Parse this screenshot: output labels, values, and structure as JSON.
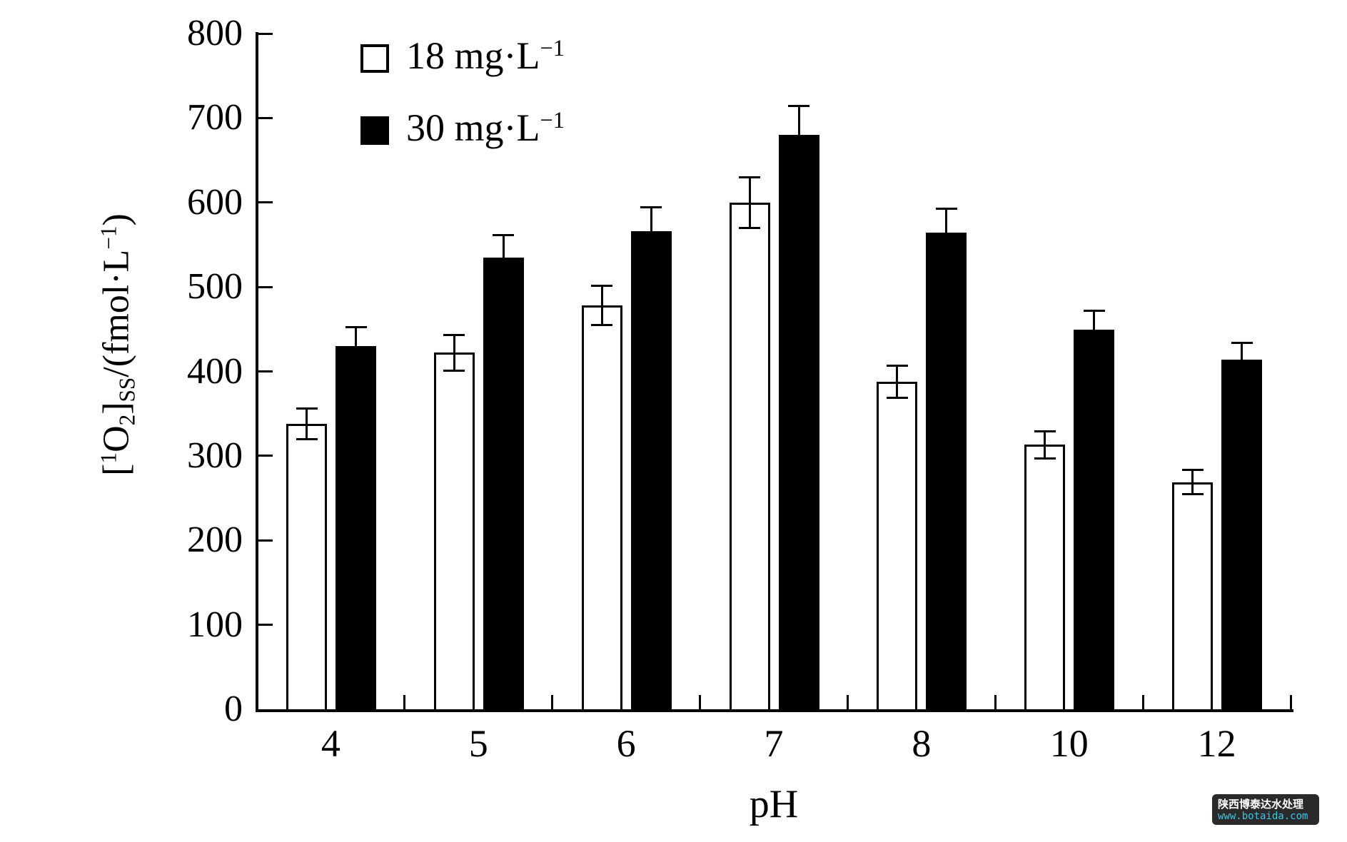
{
  "chart_data": {
    "type": "bar",
    "title": "",
    "xlabel": "pH",
    "ylabel": "[1O2]SS/(fmol·L−1)",
    "ylabel_parts": [
      {
        "t": "[",
        "s": "n"
      },
      {
        "t": "1",
        "s": "sup"
      },
      {
        "t": "O",
        "s": "n"
      },
      {
        "t": "2",
        "s": "sub"
      },
      {
        "t": "]",
        "s": "n"
      },
      {
        "t": "SS",
        "s": "sub"
      },
      {
        "t": "/(fmol·L",
        "s": "n"
      },
      {
        "t": "−1",
        "s": "sup"
      },
      {
        "t": ")",
        "s": "n"
      }
    ],
    "categories": [
      "4",
      "5",
      "6",
      "7",
      "8",
      "10",
      "12"
    ],
    "ylim": [
      0,
      800
    ],
    "ytick_step": 100,
    "yticks": [
      0,
      100,
      200,
      300,
      400,
      500,
      600,
      700,
      800
    ],
    "grid": false,
    "legend_position": "top-left-inside",
    "axis_color": "#000000",
    "series": [
      {
        "name": "18 mg·L−1",
        "name_pre": "18 mg·L",
        "name_sup": "−1",
        "fill": "#ffffff",
        "outline": "#000000",
        "values": [
          338,
          422,
          478,
          600,
          388,
          313,
          269
        ],
        "errors": [
          18,
          21,
          23,
          30,
          19,
          16,
          14
        ]
      },
      {
        "name": "30 mg·L−1",
        "name_pre": "30 mg·L",
        "name_sup": "−1",
        "fill": "#000000",
        "outline": "#000000",
        "values": [
          430,
          535,
          566,
          680,
          564,
          449,
          414
        ],
        "errors": [
          22,
          26,
          28,
          34,
          29,
          23,
          20
        ]
      }
    ]
  },
  "watermark": {
    "line1": "陕西博泰达水处理",
    "line2": "www.botaida.com",
    "bg": "#2a2a2a",
    "line1_color": "#ffffff",
    "line2_color": "#35c8e8"
  }
}
